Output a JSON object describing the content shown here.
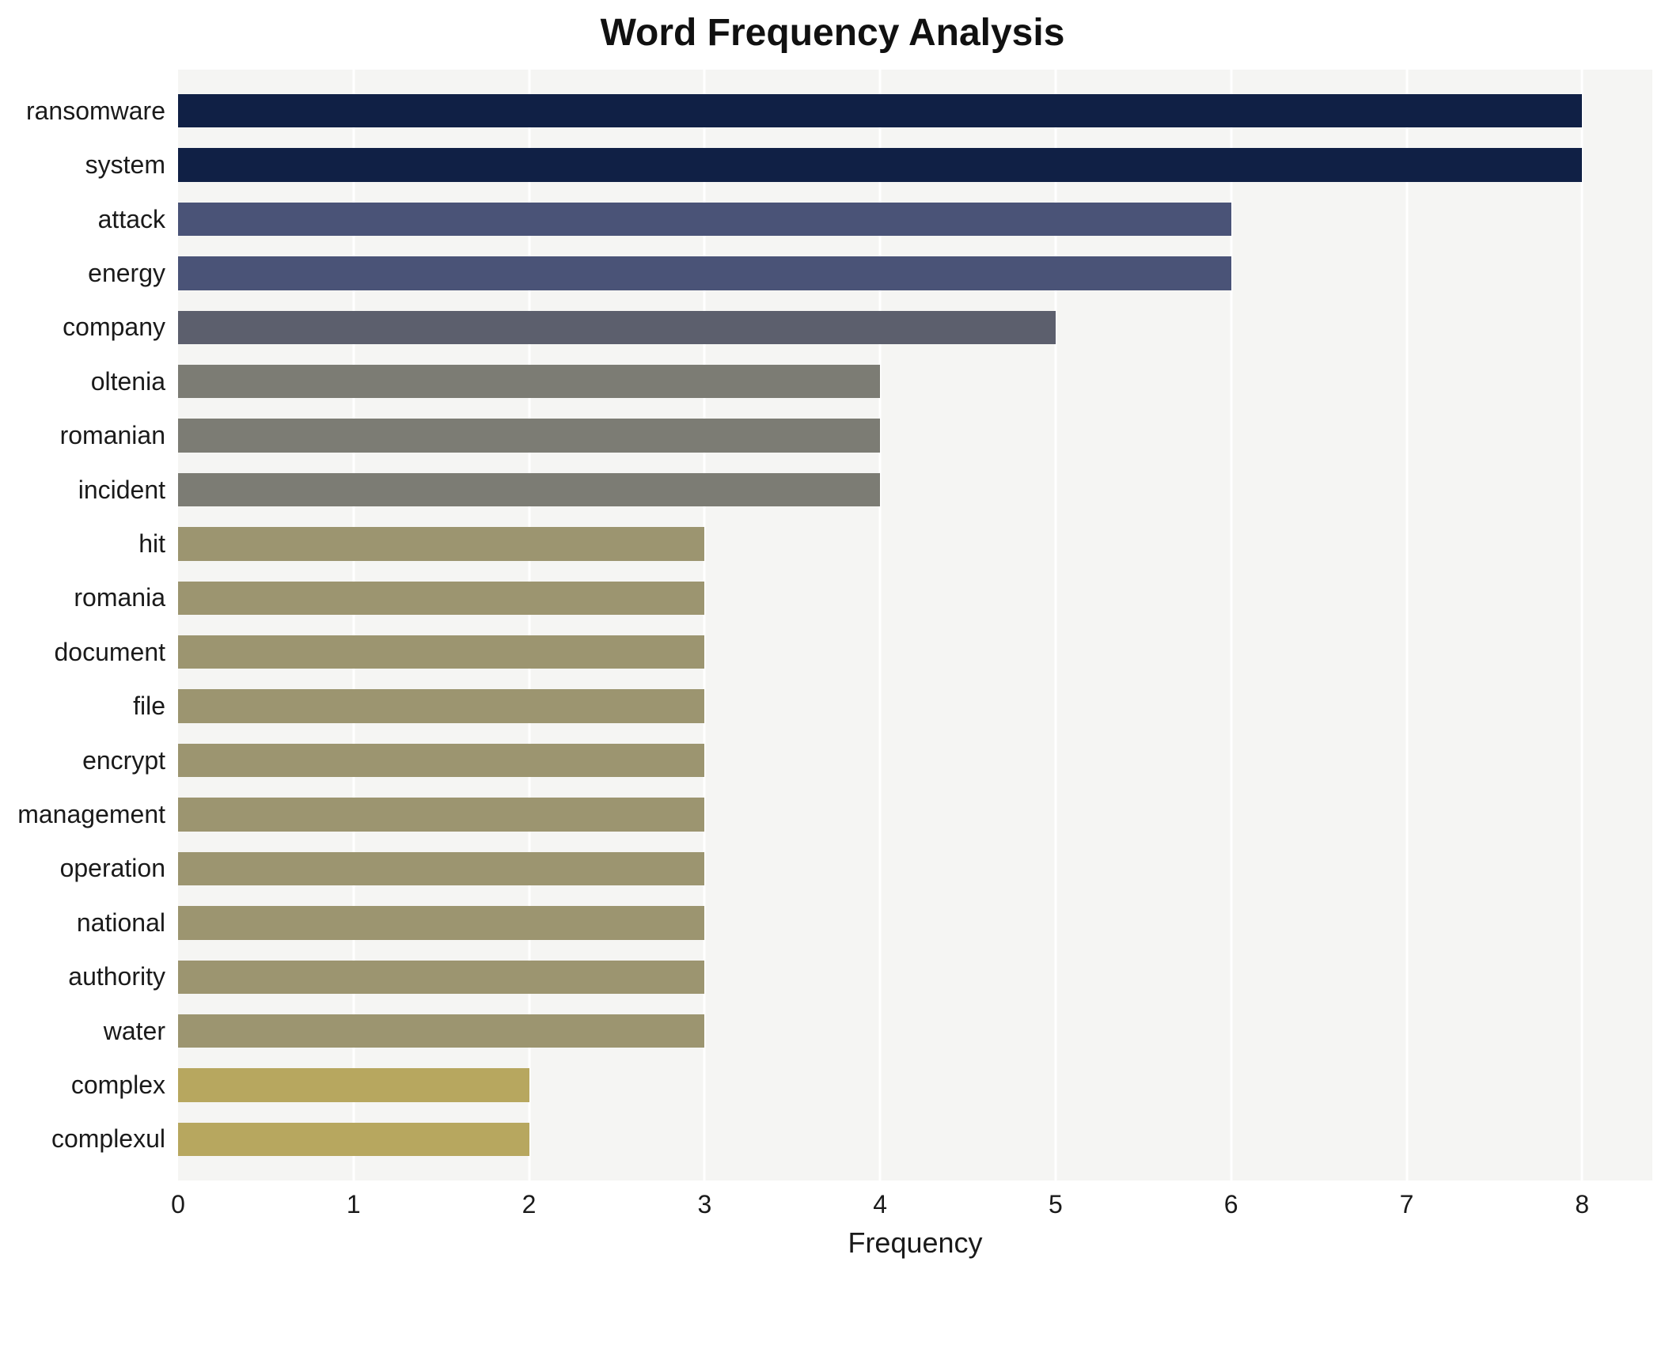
{
  "chart_data": {
    "type": "bar",
    "orientation": "horizontal",
    "title": "Word Frequency Analysis",
    "xlabel": "Frequency",
    "ylabel": "",
    "categories": [
      "ransomware",
      "system",
      "attack",
      "energy",
      "company",
      "oltenia",
      "romanian",
      "incident",
      "hit",
      "romania",
      "document",
      "file",
      "encrypt",
      "management",
      "operation",
      "national",
      "authority",
      "water",
      "complex",
      "complexul"
    ],
    "values": [
      8,
      8,
      6,
      6,
      5,
      4,
      4,
      4,
      3,
      3,
      3,
      3,
      3,
      3,
      3,
      3,
      3,
      3,
      2,
      2
    ],
    "colors": [
      "#102045",
      "#102045",
      "#4a5377",
      "#4a5377",
      "#5c5f6d",
      "#7c7c74",
      "#7c7c74",
      "#7c7c74",
      "#9c9570",
      "#9c9570",
      "#9c9570",
      "#9c9570",
      "#9c9570",
      "#9c9570",
      "#9c9570",
      "#9c9570",
      "#9c9570",
      "#9c9570",
      "#b7a75f",
      "#b7a75f"
    ],
    "xlim": [
      0,
      8.4
    ],
    "xticks": [
      0,
      1,
      2,
      3,
      4,
      5,
      6,
      7,
      8
    ],
    "grid": true,
    "legend": false,
    "plot_background": "#f5f5f3"
  }
}
